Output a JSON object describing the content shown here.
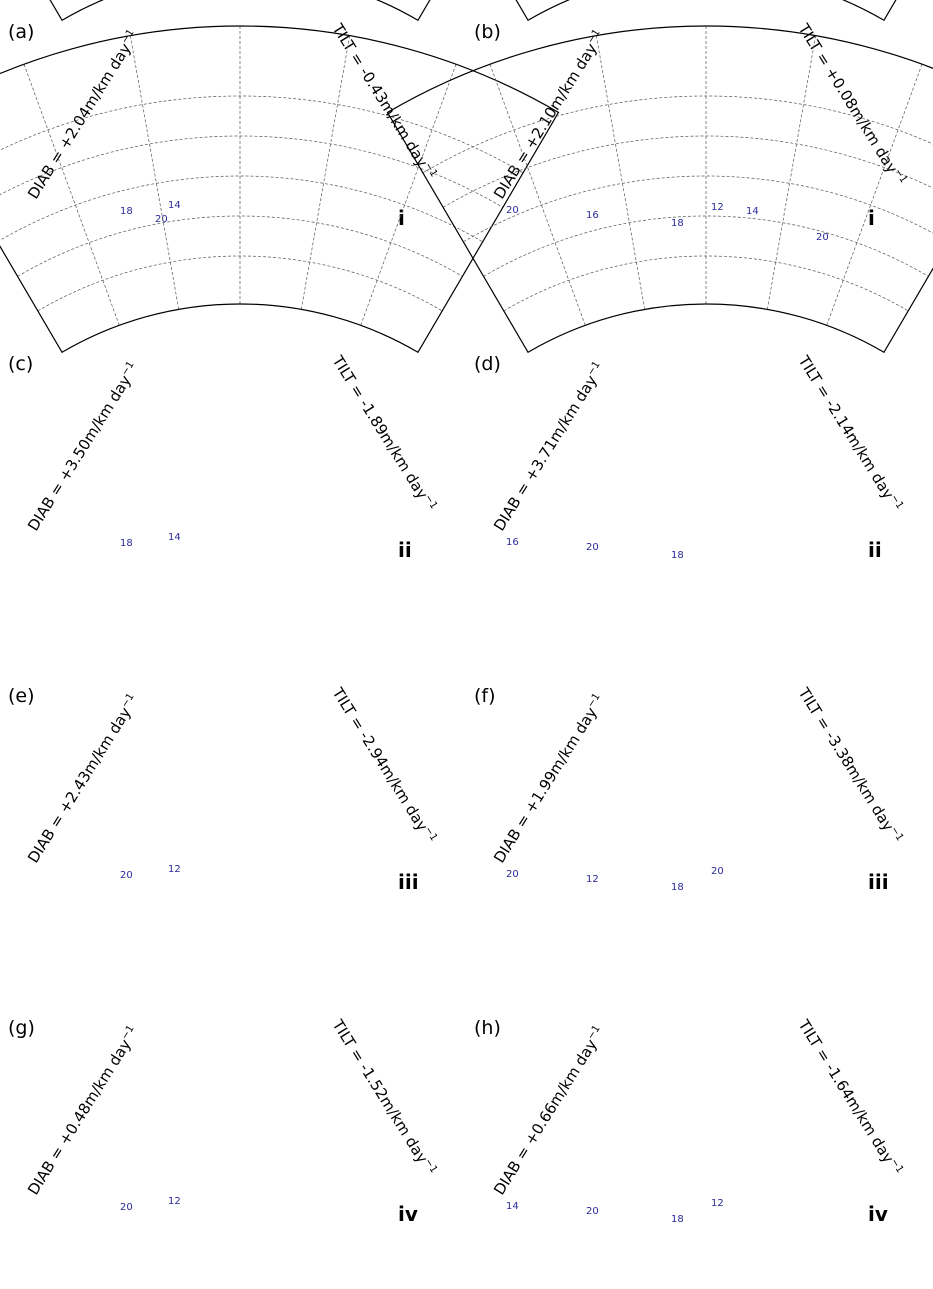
{
  "figure": {
    "panels": [
      {
        "id": "a",
        "label": "(a)",
        "diab": "DIAB =  +2.04m/km day",
        "tilt": "TILT =  -0.43m/km day",
        "exp": "−1",
        "roman": "i",
        "contour_labels": [
          "18",
          "14",
          "20"
        ],
        "layout": "atlantic"
      },
      {
        "id": "b",
        "label": "(b)",
        "diab": "DIAB =  +2.10m/km day",
        "tilt": "TILT =  +0.08m/km day",
        "exp": "−1",
        "roman": "i",
        "contour_labels": [
          "20",
          "16",
          "18",
          "12",
          "14",
          "20"
        ],
        "layout": "pacific"
      },
      {
        "id": "c",
        "label": "(c)",
        "diab": "DIAB =  +3.50m/km day",
        "tilt": "TILT =  -1.89m/km day",
        "exp": "−1",
        "roman": "ii",
        "contour_labels": [
          "18",
          "14"
        ],
        "layout": "atlantic"
      },
      {
        "id": "d",
        "label": "(d)",
        "diab": "DIAB =  +3.71m/km day",
        "tilt": "TILT =  -2.14m/km day",
        "exp": "−1",
        "roman": "ii",
        "contour_labels": [
          "16",
          "20",
          "18"
        ],
        "layout": "pacific"
      },
      {
        "id": "e",
        "label": "(e)",
        "diab": "DIAB =  +2.43m/km day",
        "tilt": "TILT =  -2.94m/km day",
        "exp": "−1",
        "roman": "iii",
        "contour_labels": [
          "20",
          "12"
        ],
        "layout": "atlantic"
      },
      {
        "id": "f",
        "label": "(f)",
        "diab": "DIAB =  +1.99m/km day",
        "tilt": "TILT =  -3.38m/km day",
        "exp": "−1",
        "roman": "iii",
        "contour_labels": [
          "20",
          "12",
          "18",
          "20"
        ],
        "layout": "pacific"
      },
      {
        "id": "g",
        "label": "(g)",
        "diab": "DIAB =  +0.48m/km day",
        "tilt": "TILT =  -1.52m/km day",
        "exp": "−1",
        "roman": "iv",
        "contour_labels": [
          "20",
          "12"
        ],
        "layout": "atlantic"
      },
      {
        "id": "h",
        "label": "(h)",
        "diab": "DIAB =  +0.66m/km day",
        "tilt": "TILT =  -1.64m/km day",
        "exp": "−1",
        "roman": "iv",
        "contour_labels": [
          "14",
          "20",
          "18",
          "12"
        ],
        "layout": "pacific"
      }
    ],
    "colors": {
      "land": "#e6e6e6",
      "shading_light": "#fcc7b8",
      "shading_mid": "#f7a08a",
      "contour": "#2b2b9a",
      "marker": "#0a0a3c",
      "box": "#7a7a7a"
    },
    "icons": {
      "marker": "raindrop-icon"
    }
  }
}
